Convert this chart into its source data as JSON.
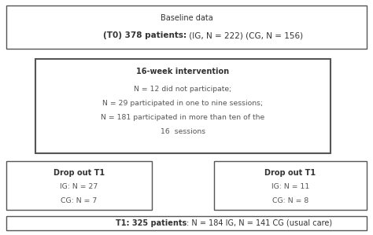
{
  "background_color": "#ffffff",
  "box_edge_color": "#555555",
  "box_face_color": "#ffffff",
  "box1": {
    "line1": "Baseline data",
    "line2_bold": "(T0) 378 patients:",
    "line2_normal": " (IG, N = 222) (CG, N = 156)"
  },
  "box2": {
    "title": "16-week intervention",
    "line1": "N = 12 did not participate;",
    "line2": "N = 29 participated in one to nine sessions;",
    "line3": "N = 181 participated in more than ten of the",
    "line4": "16  sessions"
  },
  "box3_left": {
    "title": "Drop out T1",
    "line1": "IG: N = 27",
    "line2": "CG: N = 7"
  },
  "box3_right": {
    "title": "Drop out T1",
    "line1": "IG: N = 11",
    "line2": "CG: N = 8"
  },
  "box4": {
    "bold_part": "T1: 325 patients",
    "rest": ": N = 184 IG, N = 141 CG (usual care)"
  },
  "font_size": 7.0,
  "text_color": "#333333",
  "text_color2": "#555555"
}
